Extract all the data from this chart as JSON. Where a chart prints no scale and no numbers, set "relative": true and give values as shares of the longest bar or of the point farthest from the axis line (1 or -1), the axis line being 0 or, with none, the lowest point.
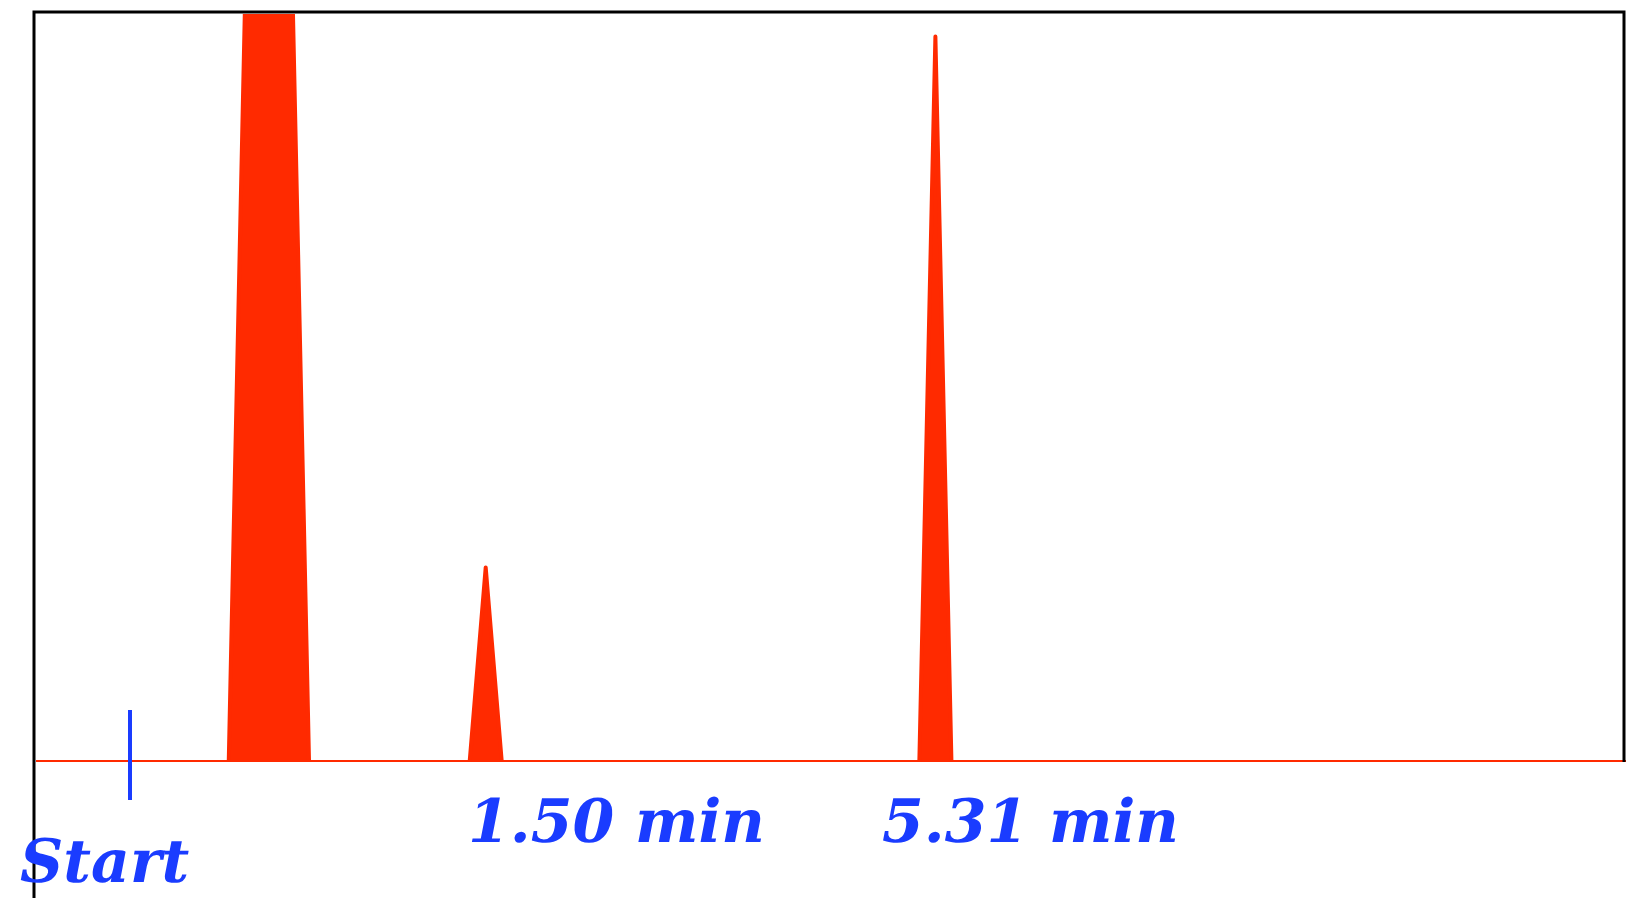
{
  "chart_data": {
    "type": "area",
    "relative": true,
    "color": "#ff2a00",
    "legend": false,
    "marker": "none",
    "categories": [
      null,
      null,
      null,
      null,
      null,
      null,
      null,
      null,
      null,
      null,
      null,
      null,
      null,
      null,
      null,
      null,
      null,
      null,
      null,
      null,
      null,
      null,
      null,
      null,
      null,
      null,
      null,
      null,
      null,
      null,
      null,
      null,
      null,
      null,
      null,
      null,
      null,
      null,
      null,
      null,
      null,
      null,
      null,
      null,
      null,
      null,
      null,
      null,
      null,
      null,
      null,
      null,
      null,
      null,
      null,
      null,
      null,
      null,
      null,
      null,
      null,
      null,
      null,
      null,
      null,
      null,
      null,
      null,
      null,
      null,
      null,
      null,
      null,
      null,
      null,
      null,
      null,
      null,
      null,
      null,
      null,
      null,
      null,
      null,
      null,
      null,
      null,
      null,
      null,
      null,
      null,
      null,
      null,
      null,
      null,
      null,
      null,
      null,
      null,
      null
    ],
    "values": [
      0,
      0,
      0,
      0,
      0,
      0,
      0,
      0,
      0,
      0,
      0,
      0,
      0,
      1,
      1,
      1,
      1,
      0,
      0,
      0,
      0,
      0,
      0,
      0,
      0,
      0,
      0,
      0,
      0.26,
      0,
      0,
      0,
      0,
      0,
      0,
      0,
      0,
      0,
      0,
      0,
      0,
      0,
      0,
      0,
      0,
      0,
      0,
      0,
      0,
      0,
      0,
      0,
      0,
      0,
      0,
      0,
      0.97,
      0,
      0,
      0,
      0,
      0,
      0,
      0,
      0,
      0,
      0,
      0,
      0,
      0,
      0,
      0,
      0,
      0,
      0,
      0,
      0,
      0,
      0,
      0,
      0,
      0,
      0,
      0,
      0,
      0,
      0,
      0,
      0,
      0,
      0,
      0,
      0,
      0,
      0,
      0,
      0,
      0,
      0,
      0
    ],
    "annotations": [
      "Start",
      "1.50 min",
      "5.31 min"
    ]
  }
}
